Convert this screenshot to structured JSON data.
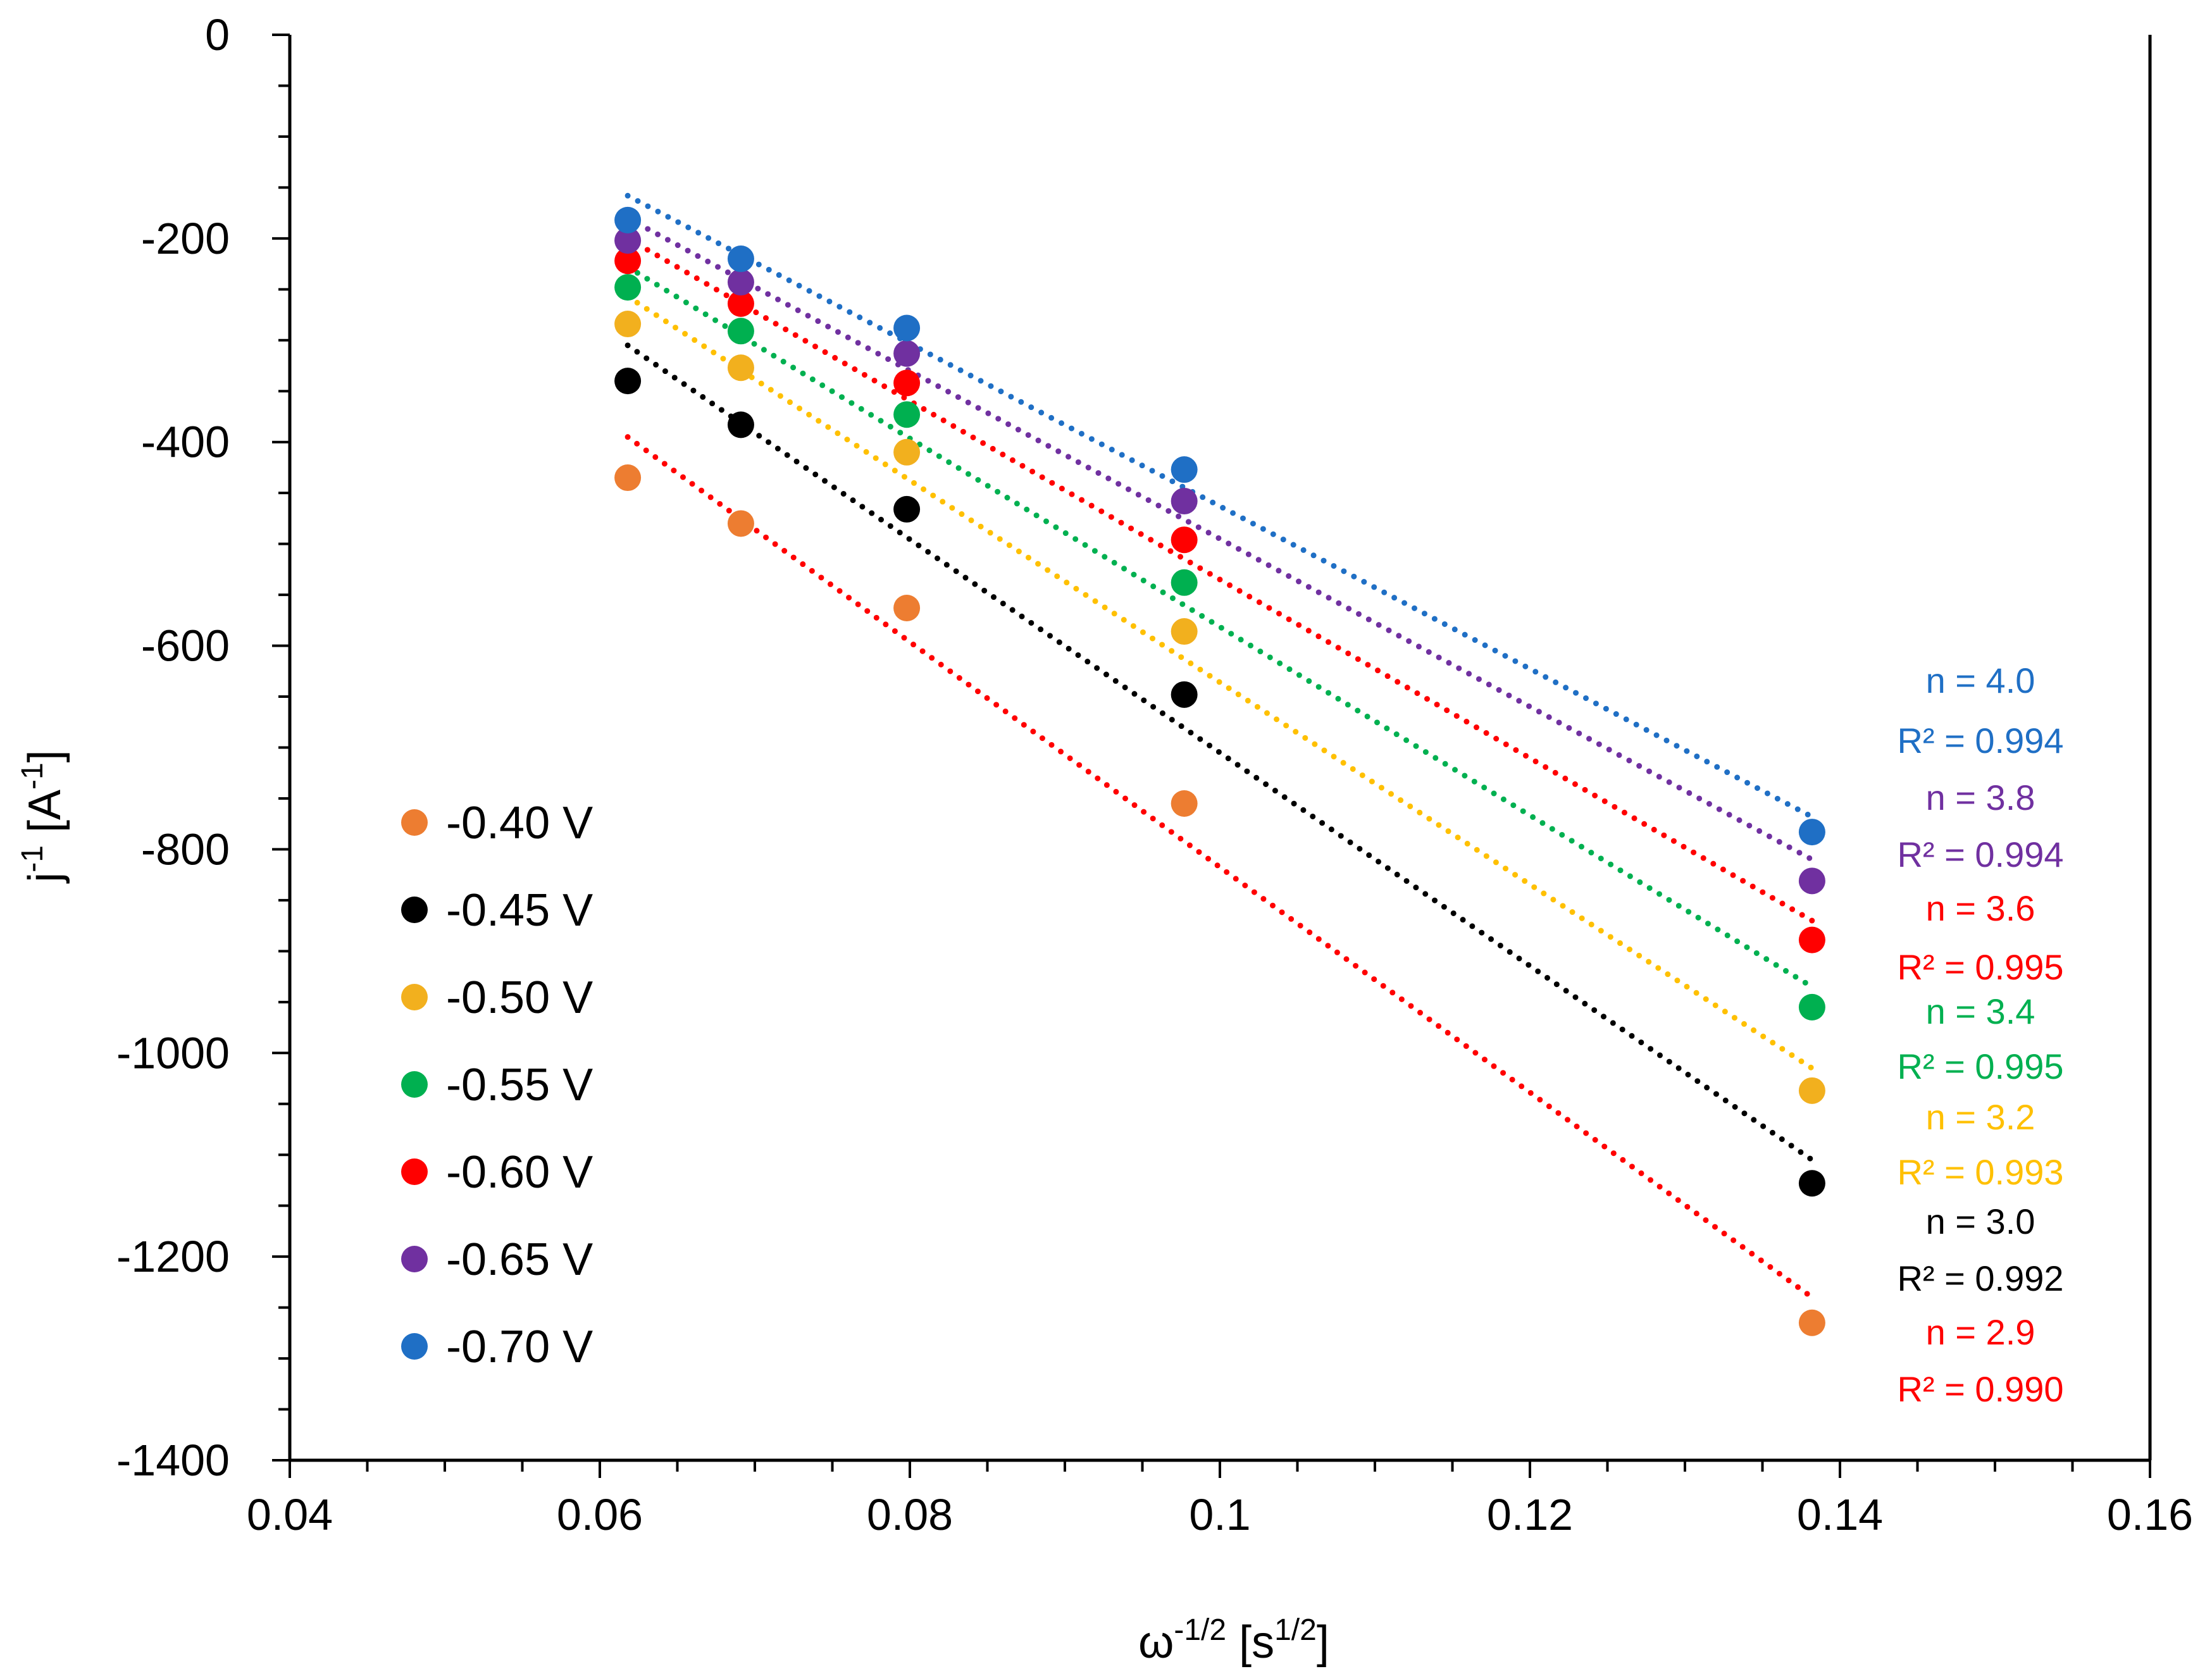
{
  "chart_data": {
    "type": "scatter",
    "title": "",
    "xlabel_base": "ω",
    "xlabel_sup": "-1/2",
    "xlabel_rest": " [s",
    "xlabel_sup2": "1/2",
    "xlabel_end": "]",
    "ylabel_base": "j",
    "ylabel_sup": "-1",
    "ylabel_rest": " [A",
    "ylabel_sup2": "-1",
    "ylabel_end": "]",
    "xlim": [
      0.04,
      0.16
    ],
    "ylim": [
      -1400,
      0
    ],
    "xticks": [
      "0.04",
      "0.06",
      "0.08",
      "0.1",
      "0.12",
      "0.14",
      "0.16"
    ],
    "yticks": [
      "0",
      "-200",
      "-400",
      "-600",
      "-800",
      "-1000",
      "-1200",
      "-1400"
    ],
    "x": [
      0.0618,
      0.0691,
      0.0798,
      0.0977,
      0.1382
    ],
    "series": [
      {
        "name": "-0.40 V",
        "color": "#ED7D31",
        "line_color": "#FF0000",
        "values": [
          -435,
          -480,
          -563,
          -755,
          -1265
        ],
        "fit": [
          -395,
          -1240
        ],
        "n": "n = 2.9",
        "r2": "R² = 0.990",
        "annot_color": "#FF0000"
      },
      {
        "name": "-0.45 V",
        "color": "#000000",
        "line_color": "#000000",
        "values": [
          -340,
          -383,
          -466,
          -648,
          -1128
        ],
        "fit": [
          -305,
          -1105
        ],
        "n": "n = 3.0",
        "r2": "R² = 0.992",
        "annot_color": "#000000"
      },
      {
        "name": "-0.50 V",
        "color": "#F2B01E",
        "line_color": "#FFC000",
        "values": [
          -284,
          -327,
          -410,
          -586,
          -1037
        ],
        "fit": [
          -257,
          -1015
        ],
        "n": "n = 3.2",
        "r2": "R² = 0.993",
        "annot_color": "#FFC000"
      },
      {
        "name": "-0.55 V",
        "color": "#00B050",
        "line_color": "#00B050",
        "values": [
          -248,
          -291,
          -373,
          -538,
          -955
        ],
        "fit": [
          -228,
          -935
        ],
        "n": "n = 3.4",
        "r2": "R² = 0.995",
        "annot_color": "#00B050"
      },
      {
        "name": "-0.60 V",
        "color": "#FF0000",
        "line_color": "#FF0000",
        "values": [
          -222,
          -264,
          -342,
          -496,
          -889
        ],
        "fit": [
          -200,
          -870
        ],
        "n": "n = 3.6",
        "r2": "R² = 0.995",
        "annot_color": "#FF0000"
      },
      {
        "name": "-0.65 V",
        "color": "#7030A0",
        "line_color": "#7030A0",
        "values": [
          -202,
          -243,
          -313,
          -458,
          -831
        ],
        "fit": [
          -180,
          -810
        ],
        "n": "n = 3.8",
        "r2": "R² = 0.994",
        "annot_color": "#7030A0"
      },
      {
        "name": "-0.70 V",
        "color": "#1F6FC5",
        "line_color": "#1F6FC5",
        "values": [
          -182,
          -220,
          -288,
          -427,
          -783
        ],
        "fit": [
          -158,
          -768
        ],
        "n": "n = 4.0",
        "r2": "R² = 0.994",
        "annot_color": "#1F6FC5"
      }
    ],
    "legend_placement": "left-lower",
    "grid": false
  }
}
